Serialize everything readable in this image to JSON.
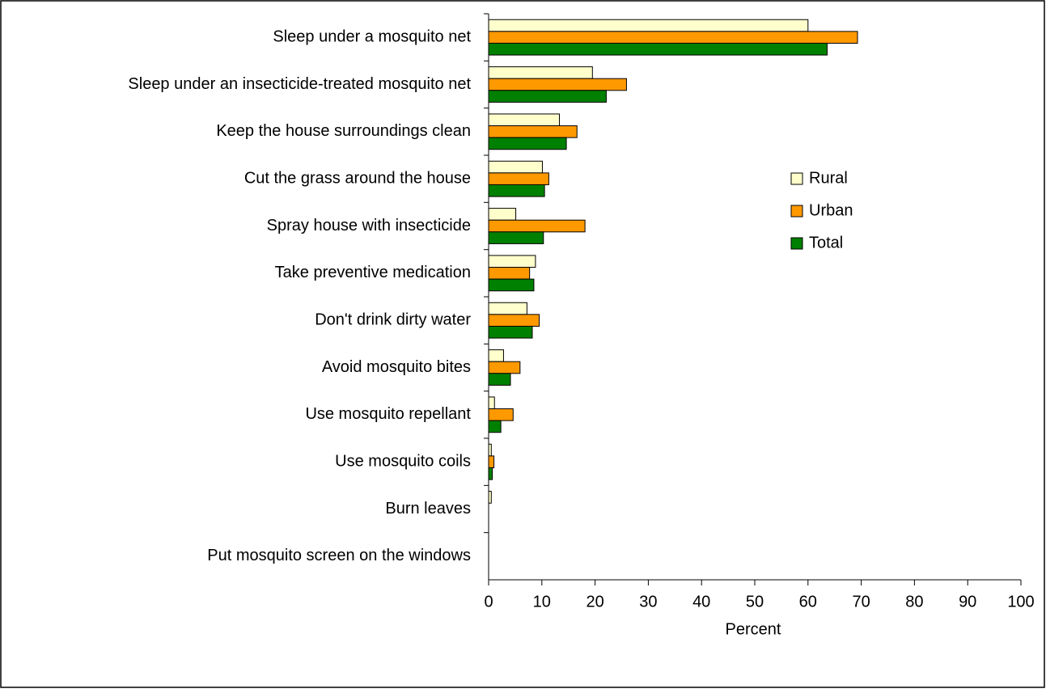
{
  "chart_data": {
    "type": "bar",
    "orientation": "horizontal",
    "categories": [
      "Sleep under a mosquito net",
      "Sleep under an insecticide-treated mosquito net",
      "Keep the house surroundings clean",
      "Cut the grass around the house",
      "Spray house with insecticide",
      "Take preventive medication",
      "Don't drink dirty water",
      "Avoid mosquito bites",
      "Use mosquito repellant",
      "Use mosquito coils",
      "Burn leaves",
      "Put mosquito screen on the windows"
    ],
    "series": [
      {
        "name": "Rural",
        "color": "#ffffcc",
        "values": [
          60,
          19.5,
          13.3,
          10.1,
          5.1,
          8.8,
          7.2,
          2.8,
          1.1,
          0.5,
          0.5,
          0
        ]
      },
      {
        "name": "Urban",
        "color": "#ff9900",
        "values": [
          69.3,
          25.9,
          16.6,
          11.3,
          18.1,
          7.7,
          9.5,
          5.9,
          4.6,
          1.0,
          0,
          0
        ]
      },
      {
        "name": "Total",
        "color": "#008000",
        "values": [
          63.6,
          22.1,
          14.6,
          10.5,
          10.3,
          8.5,
          8.2,
          4.1,
          2.3,
          0.7,
          0,
          0
        ]
      }
    ],
    "x_label": "Percent",
    "xlim": [
      0,
      100
    ],
    "xticks": [
      0,
      10,
      20,
      30,
      40,
      50,
      60,
      70,
      80,
      90,
      100
    ],
    "legend": "right"
  }
}
